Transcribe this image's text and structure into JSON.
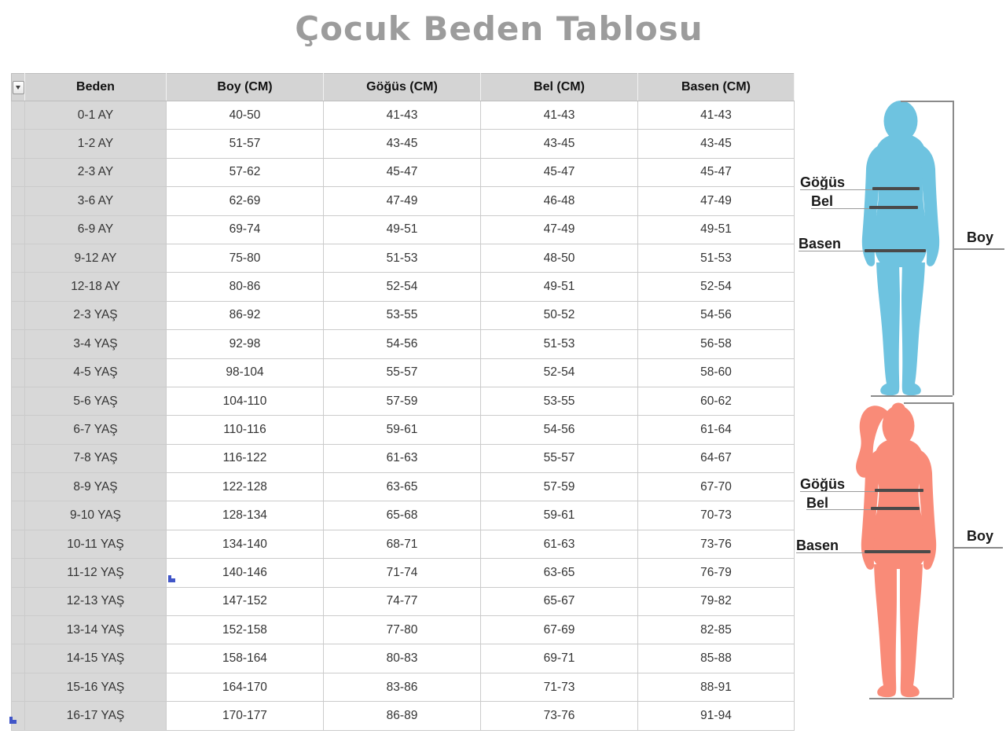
{
  "chart_data": {
    "type": "table",
    "title": "Çocuk Beden Tablosu",
    "columns": [
      "Beden",
      "Boy (CM)",
      "Göğüs (CM)",
      "Bel (CM)",
      "Basen (CM)"
    ],
    "rows": [
      [
        "0-1 AY",
        "40-50",
        "41-43",
        "41-43",
        "41-43"
      ],
      [
        "1-2 AY",
        "51-57",
        "43-45",
        "43-45",
        "43-45"
      ],
      [
        "2-3 AY",
        "57-62",
        "45-47",
        "45-47",
        "45-47"
      ],
      [
        "3-6 AY",
        "62-69",
        "47-49",
        "46-48",
        "47-49"
      ],
      [
        "6-9 AY",
        "69-74",
        "49-51",
        "47-49",
        "49-51"
      ],
      [
        "9-12 AY",
        "75-80",
        "51-53",
        "48-50",
        "51-53"
      ],
      [
        "12-18 AY",
        "80-86",
        "52-54",
        "49-51",
        "52-54"
      ],
      [
        "2-3 YAŞ",
        "86-92",
        "53-55",
        "50-52",
        "54-56"
      ],
      [
        "3-4 YAŞ",
        "92-98",
        "54-56",
        "51-53",
        "56-58"
      ],
      [
        "4-5 YAŞ",
        "98-104",
        "55-57",
        "52-54",
        "58-60"
      ],
      [
        "5-6 YAŞ",
        "104-110",
        "57-59",
        "53-55",
        "60-62"
      ],
      [
        "6-7 YAŞ",
        "110-116",
        "59-61",
        "54-56",
        "61-64"
      ],
      [
        "7-8 YAŞ",
        "116-122",
        "61-63",
        "55-57",
        "64-67"
      ],
      [
        "8-9 YAŞ",
        "122-128",
        "63-65",
        "57-59",
        "67-70"
      ],
      [
        "9-10 YAŞ",
        "128-134",
        "65-68",
        "59-61",
        "70-73"
      ],
      [
        "10-11 YAŞ",
        "134-140",
        "68-71",
        "61-63",
        "73-76"
      ],
      [
        "11-12 YAŞ",
        "140-146",
        "71-74",
        "63-65",
        "76-79"
      ],
      [
        "12-13 YAŞ",
        "147-152",
        "74-77",
        "65-67",
        "79-82"
      ],
      [
        "13-14 YAŞ",
        "152-158",
        "77-80",
        "67-69",
        "82-85"
      ],
      [
        "14-15 YAŞ",
        "158-164",
        "80-83",
        "69-71",
        "85-88"
      ],
      [
        "15-16 YAŞ",
        "164-170",
        "83-86",
        "71-73",
        "88-91"
      ],
      [
        "16-17 YAŞ",
        "170-177",
        "86-89",
        "73-76",
        "91-94"
      ]
    ],
    "annotations": {
      "boy_figure": {
        "gogus": "Göğüs",
        "bel": "Bel",
        "basen": "Basen",
        "boy": "Boy"
      },
      "girl_figure": {
        "gogus": "Göğüs",
        "bel": "Bel",
        "basen": "Basen",
        "boy": "Boy"
      }
    }
  },
  "icons": {
    "filter_dropdown_arrow": "▼"
  },
  "colors": {
    "title_gray": "#9C9C9C",
    "header_bg": "#D4D4D4",
    "label_column_bg": "#D8D8D8",
    "boy_silhouette": "#6EC3E0",
    "girl_silhouette": "#F98B78",
    "measure_bar": "#4A4A4A",
    "bracket_line": "#8A8A8A",
    "artifact_blue": "#4156C8"
  }
}
